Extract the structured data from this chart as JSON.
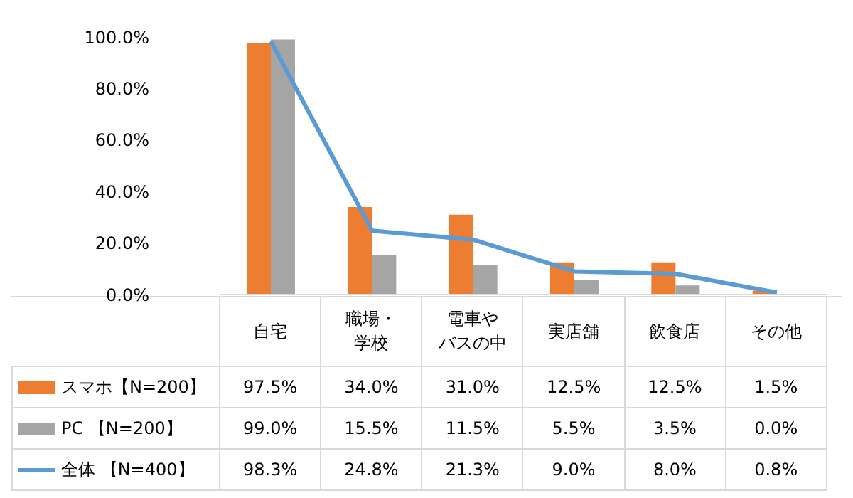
{
  "chart_data": {
    "type": "bar",
    "categories": [
      "自宅",
      "職場・学校",
      "電車やバスの中",
      "実店舗",
      "飲食店",
      "その他"
    ],
    "series": [
      {
        "name": "スマホ【N=200】",
        "color": "#ed7d31",
        "values": [
          97.5,
          34.0,
          31.0,
          12.5,
          12.5,
          1.5
        ],
        "value_labels": [
          "97.5%",
          "34.0%",
          "31.0%",
          "12.5%",
          "12.5%",
          "1.5%"
        ]
      },
      {
        "name": "PC 【N=200】",
        "color": "#a5a5a5",
        "values": [
          99.0,
          15.5,
          11.5,
          5.5,
          3.5,
          0.0
        ],
        "value_labels": [
          "99.0%",
          "15.5%",
          "11.5%",
          "5.5%",
          "3.5%",
          "0.0%"
        ]
      },
      {
        "name": "全体 【N=400】",
        "type": "line",
        "color": "#5b9bd5",
        "values": [
          98.3,
          24.8,
          21.3,
          9.0,
          8.0,
          0.8
        ],
        "value_labels": [
          "98.3%",
          "24.8%",
          "21.3%",
          "9.0%",
          "8.0%",
          "0.8%"
        ]
      }
    ],
    "ylim": [
      0,
      100
    ],
    "yticks": [
      {
        "value": 0,
        "label": "0.0%"
      },
      {
        "value": 20,
        "label": "20.0%"
      },
      {
        "value": 40,
        "label": "40.0%"
      },
      {
        "value": 60,
        "label": "60.0%"
      },
      {
        "value": 80,
        "label": "80.0%"
      },
      {
        "value": 100,
        "label": "100.0%"
      }
    ],
    "grid": false,
    "legend": "bottom left",
    "marker": "none",
    "line_style": "solid"
  }
}
